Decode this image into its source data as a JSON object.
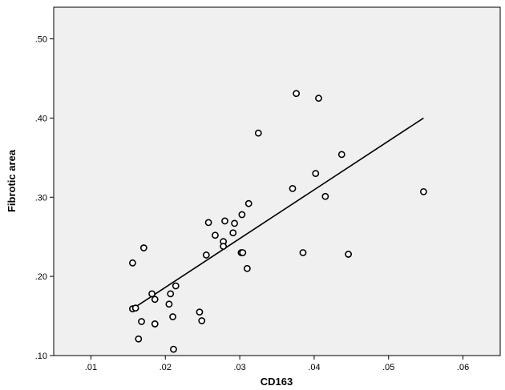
{
  "chart_data": {
    "type": "scatter",
    "title": "",
    "xlabel": "CD163",
    "ylabel": "Fibrotic area",
    "xlim": [
      0.005,
      0.065
    ],
    "ylim": [
      0.1,
      0.54
    ],
    "x_ticks": [
      ".01",
      ".02",
      ".03",
      ".04",
      ".05",
      ".06"
    ],
    "x_tick_values": [
      0.01,
      0.02,
      0.03,
      0.04,
      0.05,
      0.06
    ],
    "y_ticks": [
      ".10",
      ".20",
      ".30",
      ".40",
      ".50"
    ],
    "y_tick_values": [
      0.1,
      0.2,
      0.3,
      0.4,
      0.5
    ],
    "grid": false,
    "background_color": "#f0f0f0",
    "point_color": "#000000",
    "points": [
      {
        "x": 0.0156,
        "y": 0.217
      },
      {
        "x": 0.0171,
        "y": 0.236
      },
      {
        "x": 0.0156,
        "y": 0.159
      },
      {
        "x": 0.016,
        "y": 0.16
      },
      {
        "x": 0.0164,
        "y": 0.121
      },
      {
        "x": 0.0168,
        "y": 0.143
      },
      {
        "x": 0.0182,
        "y": 0.178
      },
      {
        "x": 0.0186,
        "y": 0.171
      },
      {
        "x": 0.0186,
        "y": 0.14
      },
      {
        "x": 0.0205,
        "y": 0.165
      },
      {
        "x": 0.0207,
        "y": 0.178
      },
      {
        "x": 0.021,
        "y": 0.149
      },
      {
        "x": 0.0211,
        "y": 0.108
      },
      {
        "x": 0.0214,
        "y": 0.188
      },
      {
        "x": 0.0246,
        "y": 0.155
      },
      {
        "x": 0.0249,
        "y": 0.144
      },
      {
        "x": 0.0255,
        "y": 0.227
      },
      {
        "x": 0.0258,
        "y": 0.268
      },
      {
        "x": 0.0267,
        "y": 0.252
      },
      {
        "x": 0.0278,
        "y": 0.244
      },
      {
        "x": 0.0278,
        "y": 0.238
      },
      {
        "x": 0.028,
        "y": 0.27
      },
      {
        "x": 0.0291,
        "y": 0.255
      },
      {
        "x": 0.0293,
        "y": 0.267
      },
      {
        "x": 0.0302,
        "y": 0.23
      },
      {
        "x": 0.0304,
        "y": 0.23
      },
      {
        "x": 0.0303,
        "y": 0.278
      },
      {
        "x": 0.031,
        "y": 0.21
      },
      {
        "x": 0.0312,
        "y": 0.292
      },
      {
        "x": 0.0325,
        "y": 0.381
      },
      {
        "x": 0.0371,
        "y": 0.311
      },
      {
        "x": 0.0376,
        "y": 0.431
      },
      {
        "x": 0.0385,
        "y": 0.23
      },
      {
        "x": 0.0402,
        "y": 0.33
      },
      {
        "x": 0.0406,
        "y": 0.425
      },
      {
        "x": 0.0415,
        "y": 0.301
      },
      {
        "x": 0.0437,
        "y": 0.354
      },
      {
        "x": 0.0446,
        "y": 0.228
      },
      {
        "x": 0.0547,
        "y": 0.307
      }
    ],
    "fit_line": {
      "x": [
        0.0156,
        0.0547
      ],
      "y": [
        0.159,
        0.4
      ]
    }
  }
}
